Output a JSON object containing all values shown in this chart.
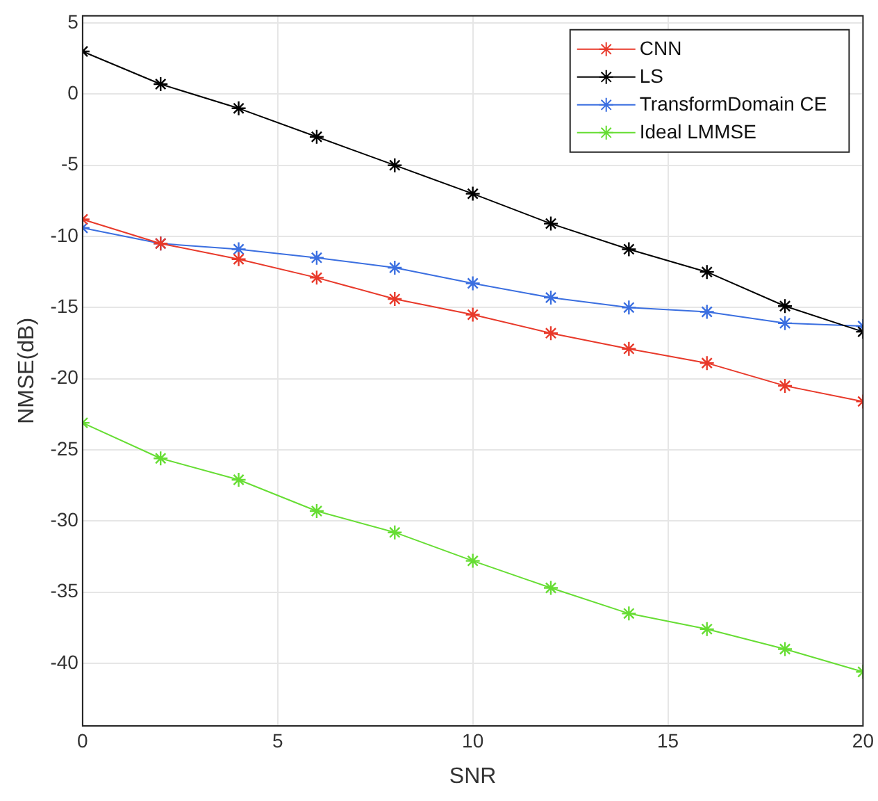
{
  "chart_data": {
    "type": "line",
    "xlabel": "SNR",
    "ylabel": "NMSE(dB)",
    "x": [
      0,
      2,
      4,
      6,
      8,
      10,
      12,
      14,
      16,
      18,
      20
    ],
    "xlim": [
      0,
      20
    ],
    "xticks": [
      0,
      5,
      10,
      15,
      20
    ],
    "ylim": [
      -44.4,
      5.5
    ],
    "yticks": [
      -40,
      -35,
      -30,
      -25,
      -20,
      -15,
      -10,
      -5,
      0,
      5
    ],
    "grid": true,
    "legend": "top right",
    "marker": "cross",
    "line_style": "solid",
    "series": [
      {
        "name": "CNN",
        "color": "#e8392a",
        "values": [
          -8.8,
          -10.5,
          -11.6,
          -12.9,
          -14.4,
          -15.5,
          -16.8,
          -17.9,
          -18.9,
          -20.5,
          -21.6
        ]
      },
      {
        "name": "LS",
        "color": "#000000",
        "values": [
          3,
          0.7,
          -1,
          -3,
          -5,
          -7,
          -9.1,
          -10.9,
          -12.5,
          -14.9,
          -16.7
        ]
      },
      {
        "name": "TransformDomain CE",
        "color": "#3b6fe0",
        "values": [
          -9.4,
          -10.5,
          -10.9,
          -11.5,
          -12.2,
          -13.3,
          -14.3,
          -15.0,
          -15.3,
          -16.1,
          -16.3
        ]
      },
      {
        "name": "Ideal LMMSE",
        "color": "#66dd33",
        "values": [
          -23.1,
          -25.6,
          -27.1,
          -29.3,
          -30.8,
          -32.8,
          -34.7,
          -36.5,
          -37.6,
          -39.0,
          -40.6
        ]
      }
    ]
  }
}
